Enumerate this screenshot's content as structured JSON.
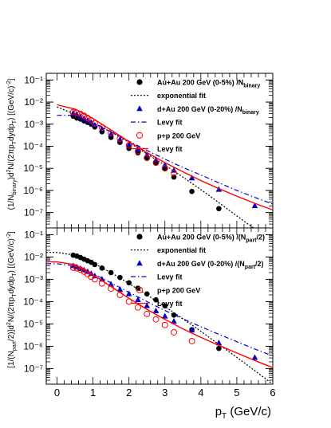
{
  "chart_data": [
    {
      "type": "scatter",
      "ylabel": "(1/N_binary)d²N/(2πp_T dy dp_T) [(GeV/c)⁻²]",
      "ylabel_parts": [
        "(1/N",
        "binary",
        ")d",
        "2",
        "N/(2πp",
        "T",
        "dydp",
        "T",
        ") [(GeV/c)",
        "-2",
        "]"
      ],
      "ylog": true,
      "ylim": [
        2e-08,
        0.2
      ],
      "ytick_labels": [
        "10⁻⁷",
        "10⁻⁶",
        "10⁻⁵",
        "10⁻⁴",
        "10⁻³",
        "10⁻²",
        "10⁻¹"
      ],
      "series": [
        {
          "name": "Au+Au 200 GeV (0-5%) /N_binary",
          "kind": "points",
          "marker": "filled-circle",
          "color": "#000000",
          "x": [
            0.45,
            0.55,
            0.65,
            0.75,
            0.85,
            0.95,
            1.05,
            1.25,
            1.5,
            1.75,
            2.0,
            2.25,
            2.5,
            2.75,
            3.0,
            3.25,
            3.75,
            4.5,
            5.5
          ],
          "y": [
            0.0023,
            0.0019,
            0.0017,
            0.0014,
            0.0012,
            0.001,
            0.00075,
            0.00045,
            0.00025,
            0.00015,
            8e-05,
            5e-05,
            2.8e-05,
            1.7e-05,
            1e-05,
            4e-06,
            9e-07,
            1.5e-07,
            null
          ]
        },
        {
          "name": "exponential fit",
          "kind": "line",
          "style": "dotted",
          "color": "#000000",
          "x": [
            0,
            0.5,
            1,
            1.5,
            2,
            2.5,
            3,
            3.5,
            4,
            4.5,
            5,
            5.5,
            6
          ],
          "y": [
            0.006,
            0.0028,
            0.0011,
            0.00045,
            0.00015,
            4.5e-05,
            1.4e-05,
            4e-06,
            1.1e-06,
            2.8e-07,
            7e-08,
            1.8e-08,
            4.5e-09
          ]
        },
        {
          "name": "d+Au 200 GeV (0-20%) /N_binary",
          "kind": "points",
          "marker": "filled-triangle",
          "color": "#0000cc",
          "x": [
            0.45,
            0.55,
            0.65,
            0.75,
            0.85,
            0.95,
            1.05,
            1.25,
            1.5,
            1.75,
            2.0,
            2.25,
            2.5,
            2.75,
            3.0,
            3.25,
            3.75,
            4.5,
            5.5
          ],
          "y": [
            0.0032,
            0.0027,
            0.0022,
            0.0018,
            0.0015,
            0.0012,
            0.0009,
            0.0006,
            0.00035,
            0.0002,
            0.00012,
            7e-05,
            4e-05,
            2.4e-05,
            1.4e-05,
            8e-06,
            3.6e-06,
            1.1e-06,
            2e-07
          ]
        },
        {
          "name": "Levy fit",
          "kind": "line",
          "style": "dash-dot",
          "color": "#0000cc",
          "x": [
            0,
            0.5,
            1,
            1.5,
            2,
            2.5,
            3,
            3.5,
            4,
            4.5,
            5,
            5.5,
            6
          ],
          "y": [
            0.0025,
            0.0025,
            0.0012,
            0.00045,
            0.00017,
            6.5e-05,
            2.6e-05,
            1.1e-05,
            5e-06,
            2.2e-06,
            1e-06,
            4.8e-07,
            2.4e-07
          ]
        },
        {
          "name": "p+p 200 GeV",
          "kind": "points",
          "marker": "open-circle",
          "color": "#ff0000",
          "x": [
            0.45,
            0.55,
            0.65,
            0.75,
            0.85,
            0.95,
            1.05,
            1.25,
            1.5,
            1.75,
            2.0,
            2.25,
            2.5,
            2.75,
            3.0,
            3.25,
            3.75,
            4.5,
            5.5
          ],
          "y": [
            0.0035,
            0.0033,
            0.0029,
            0.0024,
            0.0019,
            0.0015,
            0.0011,
            0.0007,
            0.0004,
            0.00022,
            0.00011,
            6e-05,
            3e-05,
            1.8e-05,
            1e-05,
            6e-06,
            null,
            null,
            null
          ]
        },
        {
          "name": "Levy fit",
          "kind": "line",
          "style": "solid",
          "color": "#ff0000",
          "x": [
            0,
            0.5,
            1,
            1.5,
            2,
            2.5,
            3,
            3.5,
            4,
            4.5,
            5,
            5.5,
            6
          ],
          "y": [
            0.0075,
            0.0048,
            0.0018,
            0.00055,
            0.00016,
            5.2e-05,
            1.8e-05,
            7e-06,
            2.8e-06,
            1.2e-06,
            5.5e-07,
            2.6e-07,
            1.3e-07
          ]
        }
      ],
      "legend": "top-right"
    },
    {
      "type": "scatter",
      "xlabel": "p_T (GeV/c)",
      "xlabel_parts": [
        "p",
        "T",
        " (GeV/c)"
      ],
      "ylabel": "[1/(N_part/2)]d²N/(2πp_T dy dp_T) [(GeV/c)⁻²]",
      "ylabel_parts": [
        "[1/(N",
        "part",
        "/2)]d",
        "2",
        "N/(2πp",
        "T",
        "dydp",
        "T",
        ") [(GeV/c)",
        "-2",
        "]"
      ],
      "ylog": true,
      "ylim": [
        2e-08,
        0.2
      ],
      "xlim": [
        -0.3,
        6
      ],
      "xtick_labels": [
        "0",
        "1",
        "2",
        "3",
        "4",
        "5",
        "6"
      ],
      "ytick_labels": [
        "10⁻⁷",
        "10⁻⁶",
        "10⁻⁵",
        "10⁻⁴",
        "10⁻³",
        "10⁻²",
        "10⁻¹"
      ],
      "series": [
        {
          "name": "Au+Au 200 GeV (0-5%) /(N_part/2)",
          "kind": "points",
          "marker": "filled-circle",
          "color": "#000000",
          "x": [
            0.45,
            0.55,
            0.65,
            0.75,
            0.85,
            0.95,
            1.05,
            1.25,
            1.5,
            1.75,
            2.0,
            2.25,
            2.5,
            2.75,
            3.0,
            3.25,
            3.75,
            4.5,
            5.5
          ],
          "y": [
            0.012,
            0.011,
            0.0095,
            0.008,
            0.0068,
            0.0058,
            0.0046,
            0.0032,
            0.002,
            0.0012,
            0.0007,
            0.0004,
            0.00022,
            0.00012,
            6.5e-05,
            2.5e-05,
            5.5e-06,
            8e-07,
            null
          ]
        },
        {
          "name": "exponential fit",
          "kind": "line",
          "style": "dotted",
          "color": "#000000",
          "x": [
            -0.3,
            0,
            0.5,
            1,
            1.5,
            2,
            2.5,
            3,
            3.5,
            4,
            4.5,
            5,
            5.5,
            6
          ],
          "y": [
            0.016,
            0.016,
            0.012,
            0.0055,
            0.002,
            0.00065,
            0.0002,
            6e-05,
            1.7e-05,
            4.7e-06,
            1.2e-06,
            3.2e-07,
            8e-08,
            2e-08
          ]
        },
        {
          "name": "d+Au 200 GeV (0-20%) /(N_part/2)",
          "kind": "points",
          "marker": "filled-triangle",
          "color": "#0000cc",
          "x": [
            0.45,
            0.55,
            0.65,
            0.75,
            0.85,
            0.95,
            1.05,
            1.25,
            1.5,
            1.75,
            2.0,
            2.25,
            2.5,
            2.75,
            3.0,
            3.25,
            3.75,
            4.5,
            5.5
          ],
          "y": [
            0.004,
            0.0035,
            0.003,
            0.0026,
            0.0022,
            0.0018,
            0.0014,
            0.001,
            0.0006,
            0.00035,
            0.00022,
            0.00012,
            6.5e-05,
            3.8e-05,
            2.2e-05,
            1.3e-05,
            5.2e-06,
            1.4e-06,
            3.1e-07
          ]
        },
        {
          "name": "Levy fit",
          "kind": "line",
          "style": "dash-dot",
          "color": "#0000cc",
          "x": [
            -0.3,
            0,
            0.5,
            1,
            1.5,
            2,
            2.5,
            3,
            3.5,
            4,
            4.5,
            5,
            5.5,
            6
          ],
          "y": [
            0.005,
            0.005,
            0.004,
            0.0018,
            0.0007,
            0.00026,
            0.0001,
            4e-05,
            1.7e-05,
            7.5e-06,
            3.4e-06,
            1.6e-06,
            7.5e-07,
            3.7e-07
          ]
        },
        {
          "name": "p+p 200 GeV",
          "kind": "points",
          "marker": "open-circle",
          "color": "#ff0000",
          "x": [
            0.45,
            0.55,
            0.65,
            0.75,
            0.85,
            0.95,
            1.05,
            1.25,
            1.5,
            1.75,
            2.0,
            2.25,
            2.5,
            2.75,
            3.0,
            3.25,
            3.75,
            4.5,
            5.5
          ],
          "y": [
            0.0033,
            0.0031,
            0.0027,
            0.0022,
            0.0017,
            0.0013,
            0.001,
            0.00065,
            0.00038,
            0.0002,
            0.0001,
            5.5e-05,
            2.8e-05,
            1.6e-05,
            9e-06,
            4.2e-06,
            1.7e-06,
            null,
            null
          ]
        },
        {
          "name": "Levy fit",
          "kind": "line",
          "style": "solid",
          "color": "#ff0000",
          "x": [
            -0.3,
            0,
            0.5,
            1,
            1.5,
            2,
            2.5,
            3,
            3.5,
            4,
            4.5,
            5,
            5.5,
            6
          ],
          "y": [
            0.006,
            0.006,
            0.0045,
            0.0016,
            0.00048,
            0.00014,
            4.5e-05,
            1.6e-05,
            6e-06,
            2.5e-06,
            1.1e-06,
            5e-07,
            2.3e-07,
            1.1e-07
          ]
        }
      ],
      "legend": "top-right"
    }
  ],
  "legends": [
    [
      {
        "marker": "filled-circle",
        "color": "#000000",
        "text": "Au+Au 200 GeV (0-5%) /N",
        "sub": "binary",
        "tail": ""
      },
      {
        "marker": "dotted-line",
        "color": "#000000",
        "text": "exponential fit",
        "sub": "",
        "tail": ""
      },
      {
        "marker": "filled-triangle",
        "color": "#0000cc",
        "text": "d+Au 200 GeV (0-20%) /N",
        "sub": "binary",
        "tail": ""
      },
      {
        "marker": "dashdot-line",
        "color": "#0000cc",
        "text": "Levy fit",
        "sub": "",
        "tail": ""
      },
      {
        "marker": "open-circle",
        "color": "#ff0000",
        "text": "p+p 200 GeV",
        "sub": "",
        "tail": ""
      },
      {
        "marker": "solid-line",
        "color": "#ff0000",
        "text": "Levy fit",
        "sub": "",
        "tail": ""
      }
    ],
    [
      {
        "marker": "filled-circle",
        "color": "#000000",
        "text": "Au+Au 200 GeV (0-5%) /(N",
        "sub": "part",
        "tail": "/2)"
      },
      {
        "marker": "dotted-line",
        "color": "#000000",
        "text": "exponential fit",
        "sub": "",
        "tail": ""
      },
      {
        "marker": "filled-triangle",
        "color": "#0000cc",
        "text": "d+Au 200 GeV (0-20%) /(N",
        "sub": "part",
        "tail": "/2)"
      },
      {
        "marker": "dashdot-line",
        "color": "#0000cc",
        "text": "Levy fit",
        "sub": "",
        "tail": ""
      },
      {
        "marker": "open-circle",
        "color": "#ff0000",
        "text": "p+p 200 GeV",
        "sub": "",
        "tail": ""
      },
      {
        "marker": "solid-line",
        "color": "#ff0000",
        "text": "Levy fit",
        "sub": "",
        "tail": ""
      }
    ]
  ]
}
